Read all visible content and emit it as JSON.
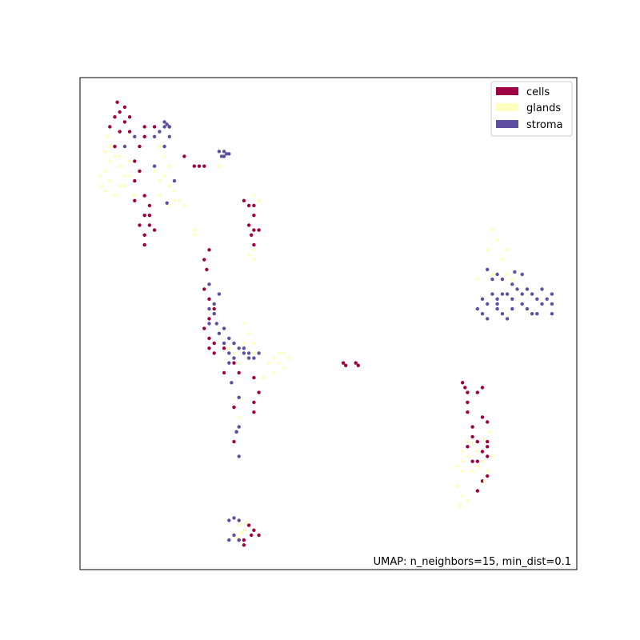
{
  "chart_data": {
    "type": "scatter",
    "title": "",
    "xlabel": "",
    "ylabel": "",
    "xlim": [
      0,
      10
    ],
    "ylim": [
      0,
      10
    ],
    "ticks_visible": false,
    "grid": false,
    "legend_position": "top-right",
    "annotation": "UMAP: n_neighbors=15, min_dist=0.1",
    "series": [
      {
        "name": "cells",
        "color": "#9e0142",
        "points": [
          [
            0.8,
            9.3
          ],
          [
            0.9,
            9.4
          ],
          [
            0.7,
            9.2
          ],
          [
            1.0,
            9.2
          ],
          [
            0.6,
            9.0
          ],
          [
            0.8,
            8.9
          ],
          [
            1.3,
            9.0
          ],
          [
            1.3,
            8.8
          ],
          [
            1.2,
            8.6
          ],
          [
            0.7,
            8.6
          ],
          [
            1.1,
            8.3
          ],
          [
            1.2,
            8.1
          ],
          [
            1.1,
            7.9
          ],
          [
            1.3,
            7.6
          ],
          [
            1.4,
            7.4
          ],
          [
            1.3,
            7.2
          ],
          [
            1.4,
            7.0
          ],
          [
            1.5,
            6.9
          ],
          [
            1.3,
            6.8
          ],
          [
            1.3,
            6.6
          ],
          [
            1.2,
            7.0
          ],
          [
            1.1,
            7.5
          ],
          [
            1.4,
            7.2
          ],
          [
            0.9,
            9.1
          ],
          [
            1.0,
            8.9
          ],
          [
            1.5,
            9.0
          ],
          [
            0.75,
            9.5
          ],
          [
            1.8,
            9.0
          ],
          [
            2.1,
            8.4
          ],
          [
            2.3,
            8.2
          ],
          [
            2.4,
            8.2
          ],
          [
            2.5,
            8.2
          ],
          [
            3.3,
            7.5
          ],
          [
            3.4,
            7.4
          ],
          [
            3.5,
            7.4
          ],
          [
            3.5,
            7.2
          ],
          [
            3.4,
            7.0
          ],
          [
            3.5,
            6.9
          ],
          [
            3.45,
            6.8
          ],
          [
            3.5,
            6.6
          ],
          [
            3.6,
            6.9
          ],
          [
            2.6,
            6.5
          ],
          [
            2.5,
            6.3
          ],
          [
            2.55,
            6.1
          ],
          [
            2.5,
            5.7
          ],
          [
            2.6,
            5.5
          ],
          [
            2.7,
            5.3
          ],
          [
            2.6,
            5.1
          ],
          [
            2.5,
            4.9
          ],
          [
            2.6,
            4.7
          ],
          [
            2.7,
            4.6
          ],
          [
            2.6,
            4.5
          ],
          [
            2.7,
            4.4
          ],
          [
            2.9,
            4.5
          ],
          [
            3.1,
            4.2
          ],
          [
            2.9,
            4.0
          ],
          [
            3.2,
            4.0
          ],
          [
            3.5,
            3.9
          ],
          [
            3.6,
            3.6
          ],
          [
            3.5,
            3.4
          ],
          [
            3.5,
            3.2
          ],
          [
            3.1,
            3.3
          ],
          [
            3.15,
            2.8
          ],
          [
            3.1,
            2.6
          ],
          [
            5.3,
            4.2
          ],
          [
            5.35,
            4.15
          ],
          [
            5.55,
            4.2
          ],
          [
            5.6,
            4.15
          ],
          [
            7.7,
            3.8
          ],
          [
            7.75,
            3.7
          ],
          [
            7.8,
            3.6
          ],
          [
            8.1,
            3.7
          ],
          [
            8.0,
            3.6
          ],
          [
            7.8,
            3.4
          ],
          [
            7.8,
            3.2
          ],
          [
            8.1,
            3.1
          ],
          [
            8.2,
            3.0
          ],
          [
            7.9,
            2.9
          ],
          [
            7.9,
            2.7
          ],
          [
            8.0,
            2.6
          ],
          [
            8.2,
            2.6
          ],
          [
            8.2,
            2.5
          ],
          [
            8.1,
            2.4
          ],
          [
            8.2,
            2.3
          ],
          [
            8.0,
            2.2
          ],
          [
            8.1,
            1.8
          ],
          [
            8.2,
            1.9
          ],
          [
            7.9,
            2.2
          ],
          [
            8.0,
            1.6
          ],
          [
            7.8,
            2.5
          ],
          [
            3.4,
            0.9
          ],
          [
            3.5,
            0.8
          ],
          [
            3.45,
            0.7
          ],
          [
            3.6,
            0.7
          ],
          [
            3.3,
            0.5
          ],
          [
            3.2,
            0.6
          ],
          [
            3.3,
            0.6
          ]
        ]
      },
      {
        "name": "glands",
        "color": "#ffffbf",
        "points": [
          [
            0.6,
            8.6
          ],
          [
            0.5,
            8.5
          ],
          [
            0.7,
            8.4
          ],
          [
            0.6,
            8.3
          ],
          [
            0.5,
            8.1
          ],
          [
            0.4,
            8.0
          ],
          [
            0.6,
            7.9
          ],
          [
            0.5,
            7.7
          ],
          [
            0.45,
            7.8
          ],
          [
            0.8,
            8.2
          ],
          [
            0.9,
            8.0
          ],
          [
            0.8,
            7.8
          ],
          [
            0.7,
            7.6
          ],
          [
            0.8,
            8.4
          ],
          [
            1.0,
            8.3
          ],
          [
            1.0,
            8.0
          ],
          [
            0.9,
            7.8
          ],
          [
            1.1,
            7.6
          ],
          [
            1.6,
            8.6
          ],
          [
            1.7,
            8.4
          ],
          [
            1.8,
            8.2
          ],
          [
            1.7,
            8.0
          ],
          [
            1.8,
            7.8
          ],
          [
            1.9,
            7.7
          ],
          [
            1.9,
            7.5
          ],
          [
            1.8,
            7.4
          ],
          [
            2.0,
            7.5
          ],
          [
            2.1,
            7.4
          ],
          [
            1.6,
            7.9
          ],
          [
            1.5,
            8.1
          ],
          [
            1.6,
            7.6
          ],
          [
            0.55,
            8.8
          ],
          [
            2.8,
            8.2
          ],
          [
            2.3,
            6.9
          ],
          [
            2.3,
            6.8
          ],
          [
            3.5,
            7.6
          ],
          [
            3.6,
            7.5
          ],
          [
            3.5,
            6.5
          ],
          [
            3.4,
            6.4
          ],
          [
            3.5,
            6.3
          ],
          [
            3.3,
            5.0
          ],
          [
            3.4,
            4.8
          ],
          [
            3.3,
            4.6
          ],
          [
            3.5,
            4.6
          ],
          [
            3.6,
            4.4
          ],
          [
            3.8,
            4.2
          ],
          [
            3.9,
            4.3
          ],
          [
            4.0,
            4.4
          ],
          [
            4.0,
            4.2
          ],
          [
            4.1,
            4.1
          ],
          [
            3.9,
            4.0
          ],
          [
            4.2,
            4.3
          ],
          [
            4.1,
            4.4
          ],
          [
            3.7,
            3.9
          ],
          [
            3.5,
            4.4
          ],
          [
            3.2,
            4.2
          ],
          [
            3.1,
            4.4
          ],
          [
            3.0,
            4.5
          ],
          [
            3.25,
            3.5
          ],
          [
            3.2,
            3.1
          ],
          [
            3.2,
            2.9
          ],
          [
            8.3,
            6.9
          ],
          [
            8.4,
            6.7
          ],
          [
            8.2,
            6.5
          ],
          [
            8.5,
            6.3
          ],
          [
            8.3,
            6.0
          ],
          [
            8.6,
            6.5
          ],
          [
            8.6,
            6.0
          ],
          [
            8.7,
            5.9
          ],
          [
            8.0,
            5.9
          ],
          [
            7.8,
            2.6
          ],
          [
            7.7,
            2.4
          ],
          [
            7.7,
            2.2
          ],
          [
            7.6,
            2.1
          ],
          [
            7.8,
            2.3
          ],
          [
            7.7,
            2.0
          ],
          [
            7.6,
            1.7
          ],
          [
            7.7,
            1.5
          ],
          [
            7.8,
            1.4
          ],
          [
            7.65,
            1.3
          ],
          [
            7.9,
            2.0
          ],
          [
            8.0,
            2.1
          ],
          [
            8.1,
            2.2
          ],
          [
            8.2,
            2.0
          ],
          [
            8.15,
            1.8
          ],
          [
            8.3,
            2.3
          ],
          [
            8.0,
            2.4
          ],
          [
            8.15,
            2.65
          ],
          [
            8.25,
            2.8
          ],
          [
            7.9,
            2.55
          ],
          [
            3.2,
            0.9
          ],
          [
            3.3,
            0.8
          ],
          [
            3.25,
            0.75
          ],
          [
            3.2,
            1.0
          ],
          [
            3.15,
            0.65
          ],
          [
            3.35,
            0.95
          ]
        ]
      },
      {
        "name": "stroma",
        "color": "#5e4fa2",
        "points": [
          [
            1.5,
            8.8
          ],
          [
            1.7,
            8.6
          ],
          [
            1.7,
            9.0
          ],
          [
            1.8,
            8.8
          ],
          [
            1.8,
            9.0
          ],
          [
            1.7,
            9.1
          ],
          [
            1.75,
            9.05
          ],
          [
            1.6,
            8.9
          ],
          [
            1.9,
            7.9
          ],
          [
            1.5,
            8.2
          ],
          [
            0.9,
            8.6
          ],
          [
            1.1,
            8.8
          ],
          [
            1.75,
            7.45
          ],
          [
            2.8,
            8.5
          ],
          [
            2.9,
            8.5
          ],
          [
            2.9,
            8.4
          ],
          [
            2.95,
            8.45
          ],
          [
            2.85,
            8.4
          ],
          [
            3.0,
            8.45
          ],
          [
            2.6,
            5.8
          ],
          [
            2.8,
            5.6
          ],
          [
            2.7,
            5.4
          ],
          [
            2.7,
            5.2
          ],
          [
            2.6,
            5.0
          ],
          [
            2.75,
            5.0
          ],
          [
            2.9,
            4.9
          ],
          [
            2.8,
            4.8
          ],
          [
            3.0,
            4.7
          ],
          [
            3.1,
            4.6
          ],
          [
            3.2,
            4.5
          ],
          [
            3.3,
            4.5
          ],
          [
            3.3,
            4.4
          ],
          [
            3.4,
            4.3
          ],
          [
            3.5,
            4.3
          ],
          [
            3.1,
            4.3
          ],
          [
            3.0,
            4.2
          ],
          [
            3.05,
            3.8
          ],
          [
            3.2,
            3.5
          ],
          [
            3.2,
            2.9
          ],
          [
            3.15,
            2.8
          ],
          [
            3.2,
            2.3
          ],
          [
            3.0,
            4.4
          ],
          [
            2.9,
            4.6
          ],
          [
            2.6,
            5.3
          ],
          [
            3.6,
            4.4
          ],
          [
            3.4,
            4.4
          ],
          [
            8.2,
            6.1
          ],
          [
            8.4,
            6.0
          ],
          [
            8.5,
            5.9
          ],
          [
            8.7,
            5.8
          ],
          [
            8.9,
            6.0
          ],
          [
            8.8,
            5.7
          ],
          [
            8.6,
            5.6
          ],
          [
            8.4,
            5.5
          ],
          [
            8.3,
            5.6
          ],
          [
            8.2,
            5.4
          ],
          [
            8.4,
            5.3
          ],
          [
            8.5,
            5.6
          ],
          [
            8.7,
            5.5
          ],
          [
            8.9,
            5.6
          ],
          [
            9.0,
            5.7
          ],
          [
            9.1,
            5.6
          ],
          [
            9.2,
            5.5
          ],
          [
            9.3,
            5.7
          ],
          [
            9.5,
            5.4
          ],
          [
            9.5,
            5.2
          ],
          [
            9.5,
            5.6
          ],
          [
            9.4,
            5.5
          ],
          [
            9.3,
            5.4
          ],
          [
            9.2,
            5.2
          ],
          [
            8.1,
            5.5
          ],
          [
            8.0,
            5.3
          ],
          [
            8.2,
            5.1
          ],
          [
            8.1,
            5.2
          ],
          [
            8.5,
            5.2
          ],
          [
            8.7,
            5.3
          ],
          [
            8.9,
            5.4
          ],
          [
            9.0,
            5.3
          ],
          [
            9.1,
            5.2
          ],
          [
            8.6,
            5.1
          ],
          [
            8.4,
            5.4
          ],
          [
            8.75,
            6.05
          ],
          [
            8.3,
            5.9
          ],
          [
            3.0,
            1.0
          ],
          [
            3.1,
            1.05
          ],
          [
            3.2,
            1.0
          ],
          [
            3.1,
            0.7
          ],
          [
            3.0,
            0.6
          ],
          [
            3.2,
            0.6
          ]
        ]
      }
    ]
  }
}
